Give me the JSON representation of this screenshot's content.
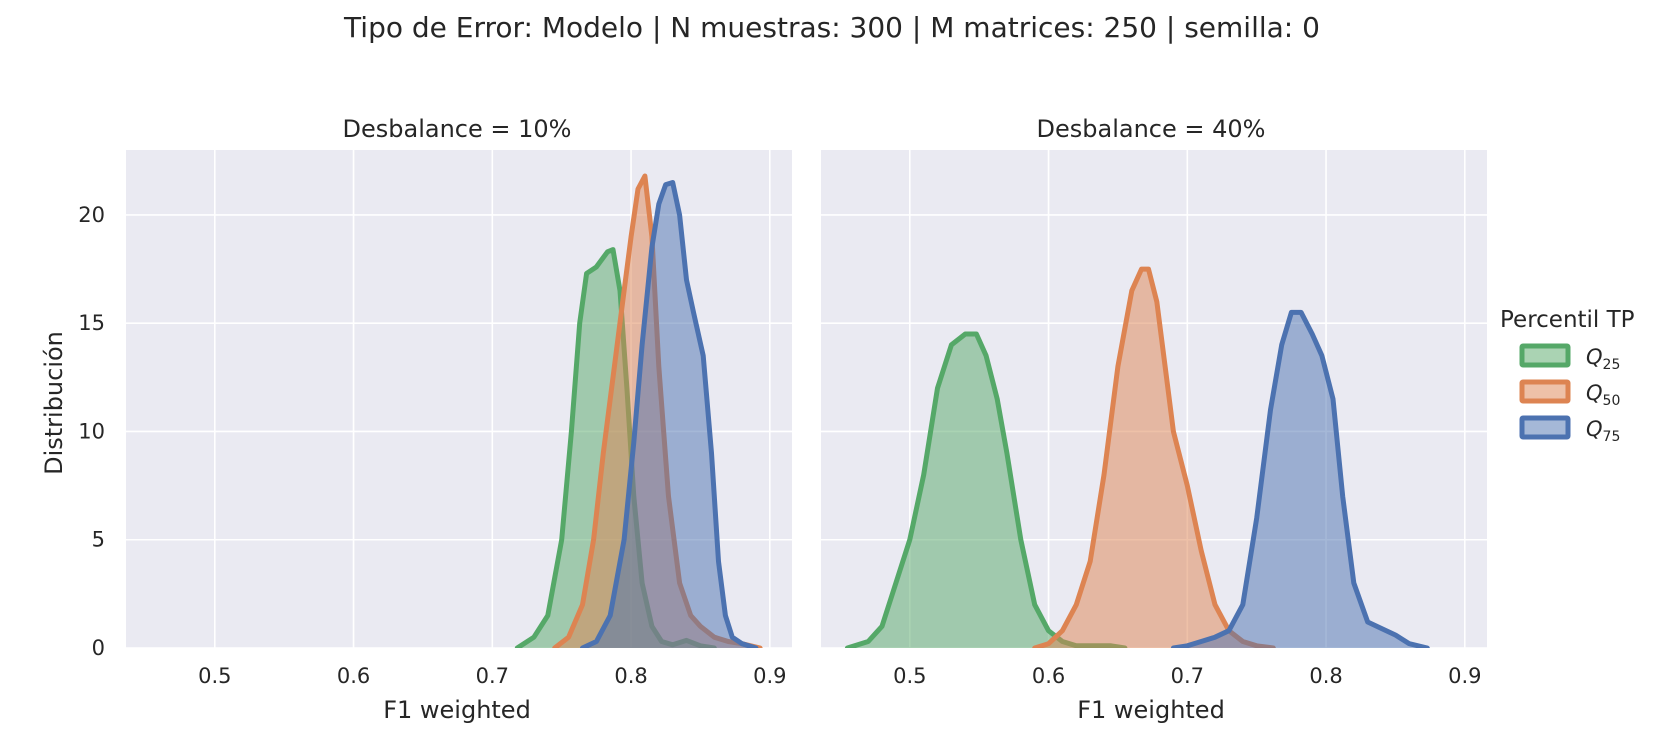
{
  "suptitle": "Tipo de Error: Modelo | N muestras: 300 | M matrices: 250 | semilla: 0",
  "legend": {
    "title": "Percentil TP",
    "entries": [
      {
        "base": "Q",
        "sub": "25",
        "color": "#55a868"
      },
      {
        "base": "Q",
        "sub": "50",
        "color": "#dd8452"
      },
      {
        "base": "Q",
        "sub": "75",
        "color": "#4c72b0"
      }
    ]
  },
  "colors": {
    "background": "#eaeaf2",
    "grid": "#ffffff"
  },
  "chart_data": [
    {
      "type": "area",
      "title": "Desbalance = 10%",
      "xlabel": "F1 weighted",
      "ylabel": "Distribución",
      "xlim": [
        0.436,
        0.916
      ],
      "ylim": [
        0,
        23
      ],
      "xticks": [
        0.5,
        0.6,
        0.7,
        0.8,
        0.9
      ],
      "xtick_labels": [
        "0.5",
        "0.6",
        "0.7",
        "0.8",
        "0.9"
      ],
      "yticks": [
        0,
        5,
        10,
        15,
        20
      ],
      "ytick_labels": [
        "0",
        "5",
        "10",
        "15",
        "20"
      ],
      "grid": true,
      "series": [
        {
          "name": "Q25",
          "color": "#55a868",
          "x": [
            0.718,
            0.73,
            0.74,
            0.75,
            0.757,
            0.763,
            0.768,
            0.775,
            0.783,
            0.787,
            0.792,
            0.797,
            0.802,
            0.808,
            0.815,
            0.822,
            0.83,
            0.84,
            0.85,
            0.86
          ],
          "y": [
            0,
            0.5,
            1.5,
            5,
            10,
            15,
            17.3,
            17.6,
            18.3,
            18.4,
            16.5,
            12,
            7,
            3,
            1,
            0.3,
            0.15,
            0.35,
            0.1,
            0
          ]
        },
        {
          "name": "Q50",
          "color": "#dd8452",
          "x": [
            0.745,
            0.755,
            0.765,
            0.773,
            0.78,
            0.788,
            0.795,
            0.8,
            0.805,
            0.81,
            0.815,
            0.82,
            0.827,
            0.835,
            0.843,
            0.85,
            0.86,
            0.87,
            0.88,
            0.893
          ],
          "y": [
            0,
            0.5,
            2,
            5,
            9,
            13,
            16.5,
            19,
            21.2,
            21.8,
            19,
            13,
            7,
            3,
            1.5,
            1,
            0.5,
            0.3,
            0.2,
            0
          ]
        },
        {
          "name": "Q75",
          "color": "#4c72b0",
          "x": [
            0.765,
            0.775,
            0.785,
            0.795,
            0.802,
            0.808,
            0.815,
            0.82,
            0.825,
            0.83,
            0.835,
            0.84,
            0.845,
            0.852,
            0.858,
            0.863,
            0.868,
            0.873,
            0.88,
            0.89
          ],
          "y": [
            0,
            0.3,
            1.5,
            5,
            9.5,
            14,
            18.5,
            20.5,
            21.4,
            21.5,
            20,
            17,
            15.5,
            13.5,
            9,
            4,
            1.5,
            0.5,
            0.2,
            0
          ]
        }
      ]
    },
    {
      "type": "area",
      "title": "Desbalance = 40%",
      "xlabel": "F1 weighted",
      "ylabel": "",
      "xlim": [
        0.436,
        0.916
      ],
      "ylim": [
        0,
        23
      ],
      "xticks": [
        0.5,
        0.6,
        0.7,
        0.8,
        0.9
      ],
      "xtick_labels": [
        "0.5",
        "0.6",
        "0.7",
        "0.8",
        "0.9"
      ],
      "yticks": [
        0,
        5,
        10,
        15,
        20
      ],
      "grid": true,
      "series": [
        {
          "name": "Q25",
          "color": "#55a868",
          "x": [
            0.455,
            0.47,
            0.48,
            0.49,
            0.5,
            0.51,
            0.52,
            0.53,
            0.54,
            0.548,
            0.555,
            0.563,
            0.57,
            0.58,
            0.59,
            0.6,
            0.61,
            0.62,
            0.635,
            0.645,
            0.655
          ],
          "y": [
            0,
            0.3,
            1,
            3,
            5,
            8,
            12,
            14,
            14.5,
            14.5,
            13.5,
            11.5,
            9,
            5,
            2,
            0.8,
            0.3,
            0.1,
            0.1,
            0.1,
            0
          ]
        },
        {
          "name": "Q50",
          "color": "#dd8452",
          "x": [
            0.59,
            0.6,
            0.61,
            0.62,
            0.63,
            0.64,
            0.65,
            0.66,
            0.667,
            0.672,
            0.678,
            0.685,
            0.69,
            0.7,
            0.71,
            0.72,
            0.73,
            0.74,
            0.75,
            0.762
          ],
          "y": [
            0,
            0.2,
            0.8,
            2,
            4,
            8,
            13,
            16.5,
            17.5,
            17.5,
            16,
            12.5,
            10,
            7.5,
            4.5,
            2,
            0.8,
            0.3,
            0.1,
            0
          ]
        },
        {
          "name": "Q75",
          "color": "#4c72b0",
          "x": [
            0.69,
            0.7,
            0.71,
            0.72,
            0.73,
            0.74,
            0.75,
            0.76,
            0.768,
            0.775,
            0.782,
            0.79,
            0.797,
            0.805,
            0.812,
            0.82,
            0.83,
            0.84,
            0.85,
            0.86,
            0.873
          ],
          "y": [
            0,
            0.1,
            0.3,
            0.5,
            0.8,
            2,
            6,
            11,
            14,
            15.5,
            15.5,
            14.5,
            13.5,
            11.5,
            7,
            3,
            1.2,
            0.9,
            0.6,
            0.2,
            0
          ]
        }
      ]
    }
  ]
}
